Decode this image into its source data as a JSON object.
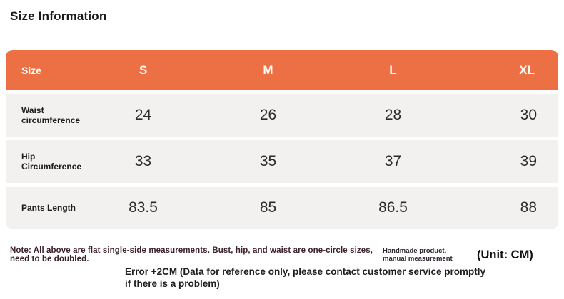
{
  "page": {
    "title": "Size Information"
  },
  "table": {
    "columns": [
      "Size",
      "S",
      "M",
      "L",
      "XL"
    ],
    "rows": [
      {
        "label": "Waist circumference",
        "values": [
          "24",
          "26",
          "28",
          "30"
        ]
      },
      {
        "label": "Hip Circumference",
        "values": [
          "33",
          "35",
          "37",
          "39"
        ]
      },
      {
        "label": "Pants Length",
        "values": [
          "83.5",
          "85",
          "86.5",
          "88"
        ]
      }
    ]
  },
  "notes": {
    "measurement_note": "Note: All above are flat single-side measurements. Bust, hip, and waist are one-circle sizes, need to be doubled.",
    "handmade_note": "Handmade product, manual measurement",
    "unit_label": "(Unit: CM)",
    "error_note": "Error +2CM (Data for reference only, please contact customer service promptly if there is a problem)"
  },
  "colors": {
    "header_bg": "#ed7045",
    "header_text": "#fdf8f4",
    "row_bg": "#f2f1f0",
    "body_text": "#2b2b2b",
    "note_text": "#3a1f2d"
  }
}
